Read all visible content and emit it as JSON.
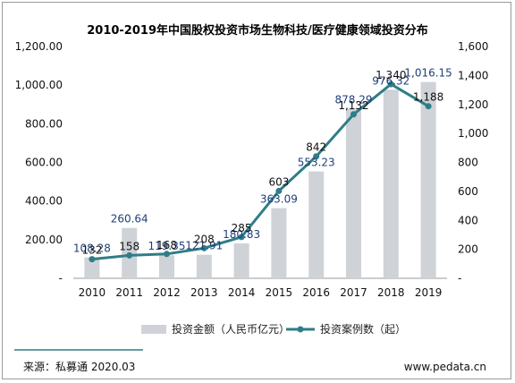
{
  "chart_data": {
    "type": "bar+line",
    "title": "2010-2019年中国股权投资市场生物科技/医疗健康领域投资分布",
    "categories": [
      "2010",
      "2011",
      "2012",
      "2013",
      "2014",
      "2015",
      "2016",
      "2017",
      "2018",
      "2019"
    ],
    "series": [
      {
        "name": "投资金额（人民币亿元）",
        "type": "bar",
        "axis": "left",
        "values": [
          108.28,
          260.64,
          119.35,
          121.91,
          180.83,
          363.09,
          553.23,
          878.29,
          976.32,
          1016.15
        ],
        "labels": [
          "108.28",
          "260.64",
          "119.35",
          "121.91",
          "180.83",
          "363.09",
          "553.23",
          "878.29",
          "976.32",
          "1,016.15"
        ]
      },
      {
        "name": "投资案例数（起）",
        "type": "line",
        "axis": "right",
        "values": [
          132,
          158,
          168,
          208,
          285,
          603,
          842,
          1132,
          1340,
          1188
        ],
        "labels": [
          "132",
          "158",
          "168",
          "208",
          "285",
          "603",
          "842",
          "1,132",
          "1,340",
          "1,188"
        ]
      }
    ],
    "y_left": {
      "min": 0,
      "max": 1200,
      "ticks": [
        "-",
        "200.00",
        "400.00",
        "600.00",
        "800.00",
        "1,000.00",
        "1,200.00"
      ]
    },
    "y_right": {
      "min": 0,
      "max": 1600,
      "ticks": [
        "-",
        "200",
        "400",
        "600",
        "800",
        "1,000",
        "1,200",
        "1,400",
        "1,600"
      ]
    },
    "grid": false,
    "legend": "bottom",
    "colors": {
      "bar": "#cfd2d6",
      "line": "#2f7d87",
      "bar_label": "#1f3f7a",
      "footer_rule": "#2f7d87"
    }
  },
  "footer": {
    "source": "来源：私募通 2020.03",
    "site": "www.pedata.cn"
  }
}
